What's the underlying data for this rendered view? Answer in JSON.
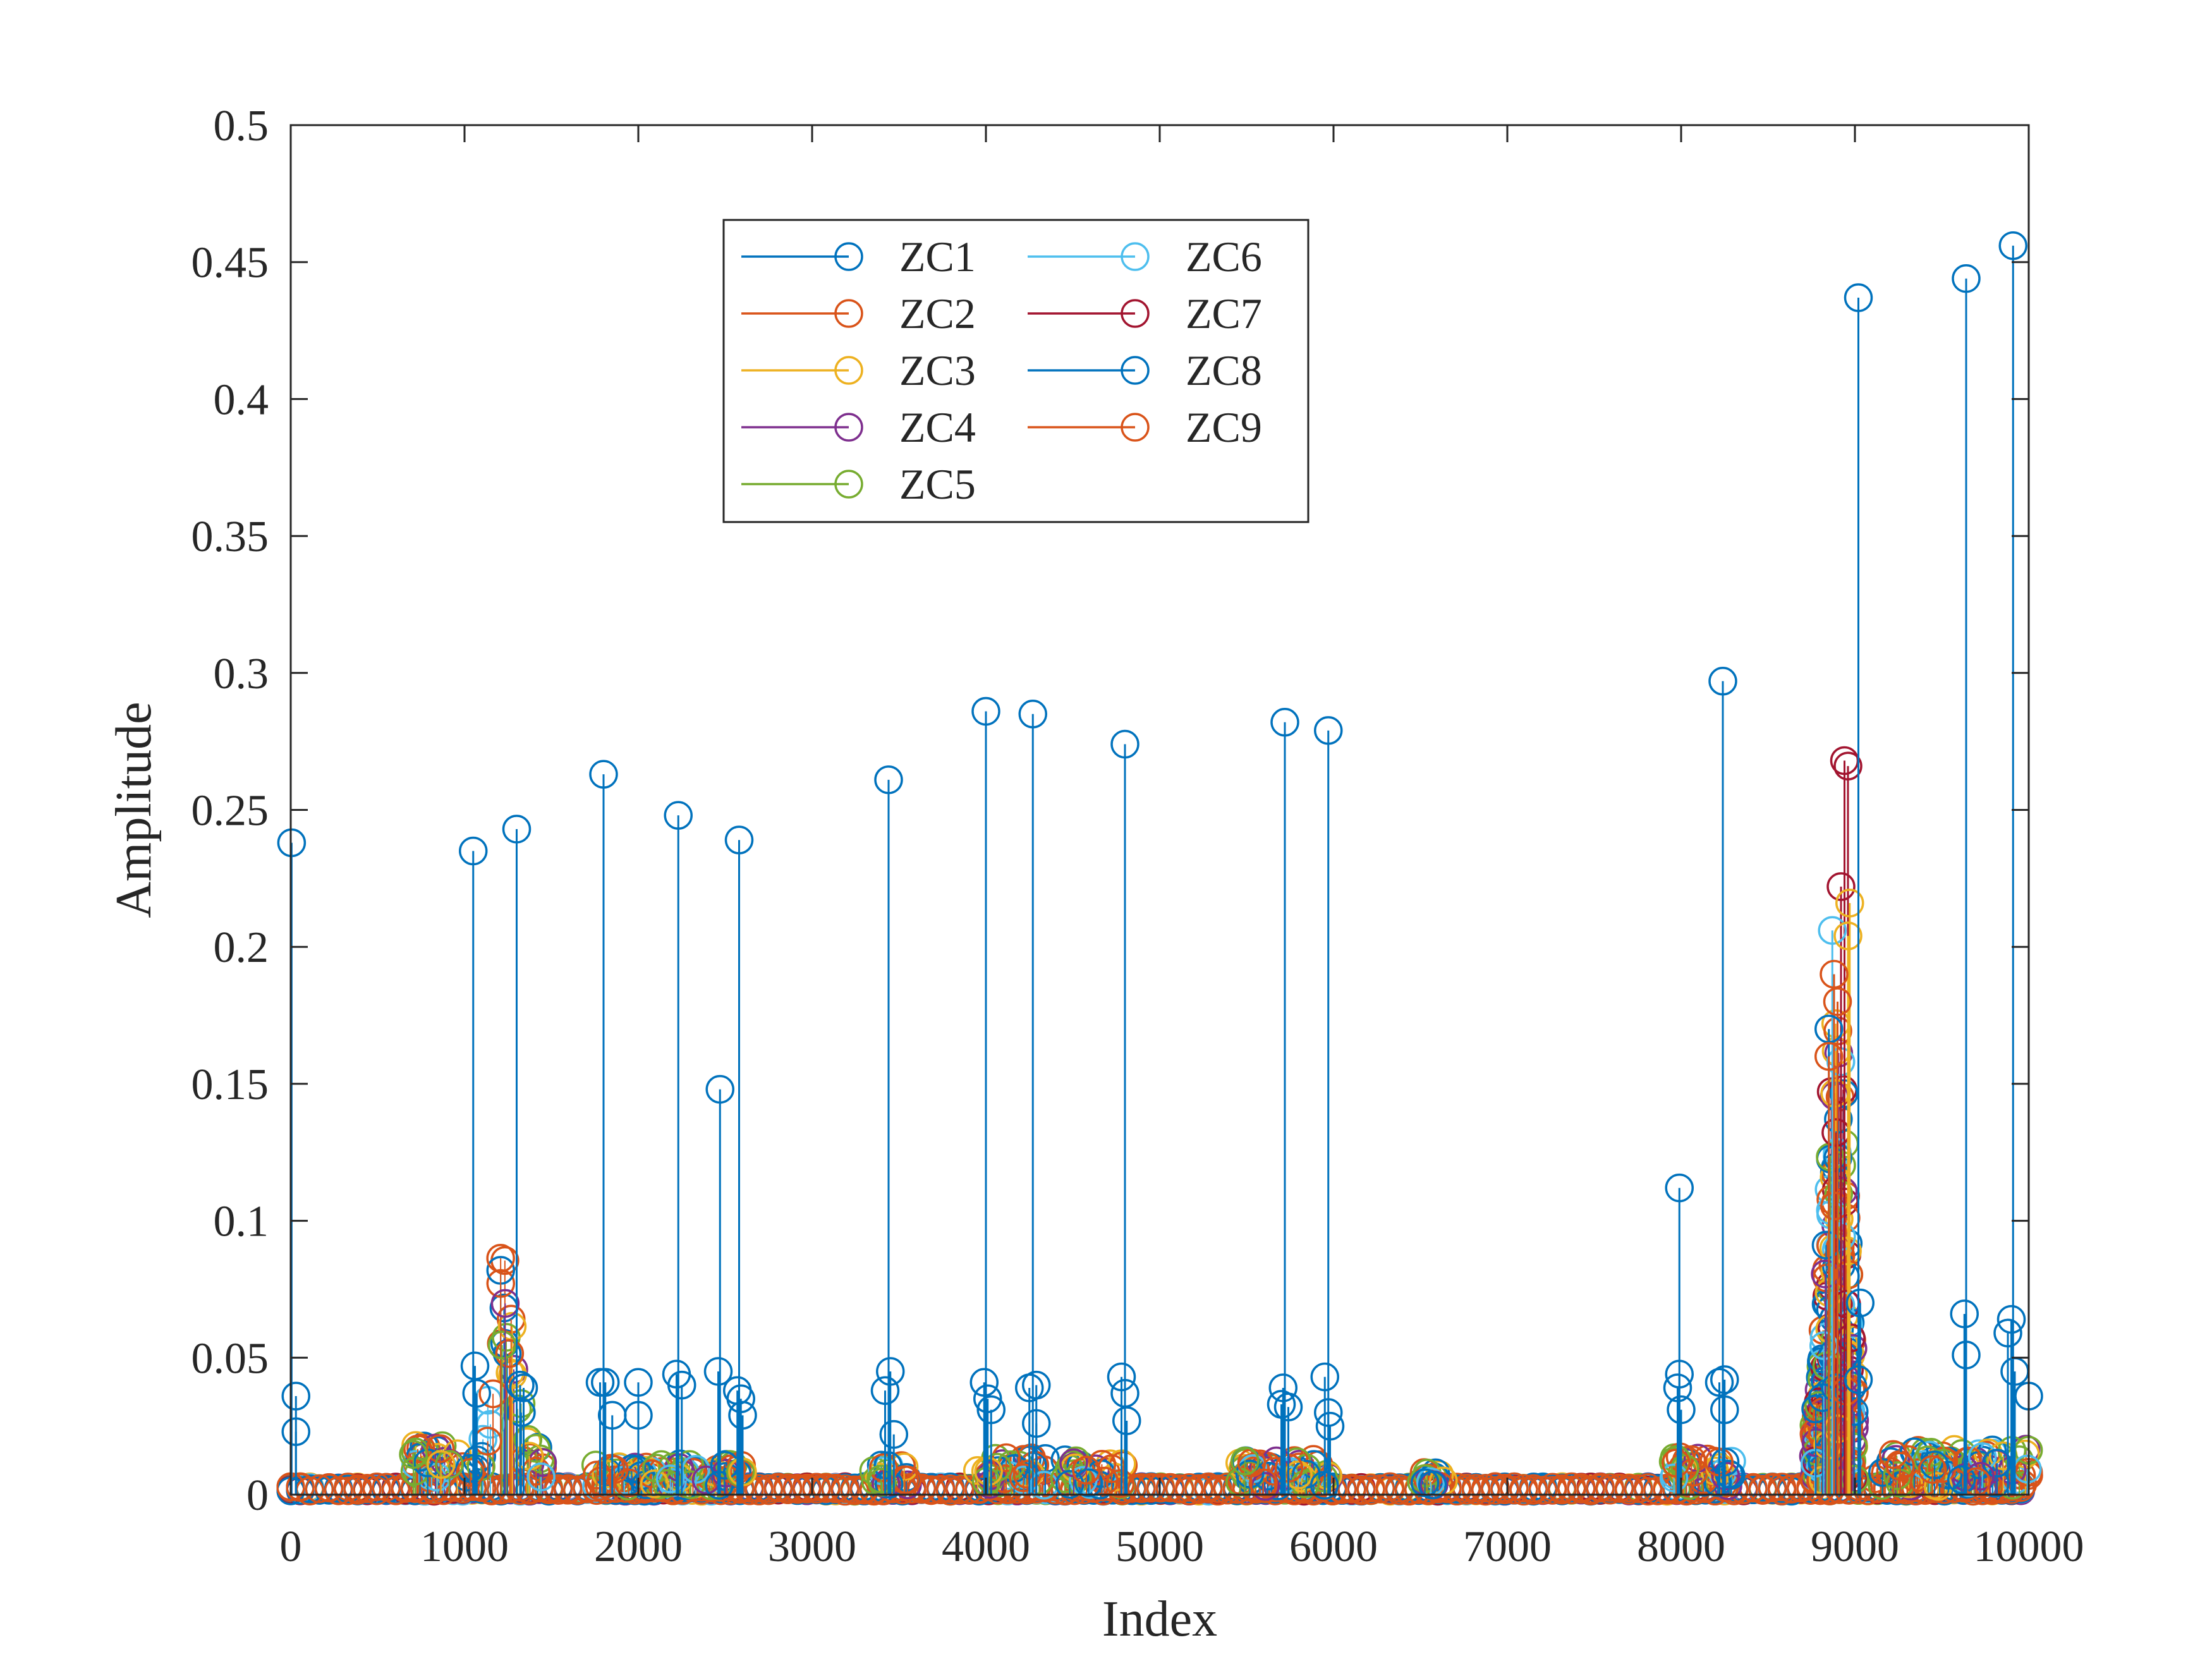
{
  "chart_data": {
    "type": "stem",
    "title": "",
    "xlabel": "Index",
    "ylabel": "Amplitude",
    "xlim": [
      0,
      10000
    ],
    "ylim": [
      0,
      0.5
    ],
    "xticks": [
      0,
      1000,
      2000,
      3000,
      4000,
      5000,
      6000,
      7000,
      8000,
      9000,
      10000
    ],
    "xtick_labels": [
      "0",
      "1000",
      "2000",
      "3000",
      "4000",
      "5000",
      "6000",
      "7000",
      "8000",
      "9000",
      "10000"
    ],
    "yticks": [
      0,
      0.05,
      0.1,
      0.15,
      0.2,
      0.25,
      0.3,
      0.35,
      0.4,
      0.45,
      0.5
    ],
    "ytick_labels": [
      "0",
      "0.05",
      "0.1",
      "0.15",
      "0.2",
      "0.25",
      "0.3",
      "0.35",
      "0.4",
      "0.45",
      "0.5"
    ],
    "grid": false,
    "legend_position": "top-center",
    "legend_columns": 2,
    "marker": "open-circle",
    "series": [
      {
        "name": "ZC1",
        "color": "#0072BD"
      },
      {
        "name": "ZC2",
        "color": "#D95319"
      },
      {
        "name": "ZC3",
        "color": "#EDB120"
      },
      {
        "name": "ZC4",
        "color": "#7E2F8E"
      },
      {
        "name": "ZC5",
        "color": "#77AC30"
      },
      {
        "name": "ZC6",
        "color": "#4DBEEE"
      },
      {
        "name": "ZC7",
        "color": "#A2142F"
      },
      {
        "name": "ZC8",
        "color": "#0072BD"
      },
      {
        "name": "ZC9",
        "color": "#D95319"
      }
    ],
    "peaks": {
      "series": "ZC1",
      "x": [
        5,
        1050,
        1300,
        1800,
        2230,
        2470,
        2580,
        3440,
        4000,
        4270,
        4800,
        5720,
        5970,
        7990,
        8240,
        9020,
        9640,
        9910
      ],
      "y": [
        0.238,
        0.235,
        0.243,
        0.263,
        0.248,
        0.148,
        0.239,
        0.261,
        0.286,
        0.285,
        0.274,
        0.282,
        0.279,
        0.112,
        0.297,
        0.437,
        0.444,
        0.456
      ]
    },
    "small_points": {
      "series": "ZC1",
      "x": [
        30,
        30,
        1060,
        1070,
        1320,
        1340,
        1780,
        1810,
        1850,
        2000,
        2000,
        2220,
        2250,
        2460,
        2570,
        2590,
        2600,
        3420,
        3450,
        3470,
        3990,
        4010,
        4030,
        4250,
        4290,
        4290,
        4780,
        4800,
        4810,
        5700,
        5710,
        5740,
        5950,
        5970,
        5980,
        7980,
        7990,
        8000,
        8220,
        8250,
        8250,
        9030,
        9020,
        9630,
        9640,
        9880,
        9900,
        9920,
        10000
      ],
      "y": [
        0.036,
        0.023,
        0.047,
        0.037,
        0.04,
        0.039,
        0.041,
        0.041,
        0.029,
        0.041,
        0.029,
        0.044,
        0.04,
        0.045,
        0.038,
        0.035,
        0.029,
        0.038,
        0.045,
        0.022,
        0.041,
        0.035,
        0.031,
        0.039,
        0.04,
        0.026,
        0.043,
        0.037,
        0.027,
        0.033,
        0.039,
        0.032,
        0.043,
        0.03,
        0.025,
        0.039,
        0.044,
        0.031,
        0.041,
        0.042,
        0.031,
        0.07,
        0.042,
        0.066,
        0.051,
        0.059,
        0.064,
        0.045,
        0.036
      ]
    },
    "spike_cluster": {
      "x_range": [
        8700,
        9000
      ],
      "series_peaks": [
        {
          "series": "ZC7",
          "x": 8940,
          "y": 0.268
        },
        {
          "series": "ZC7",
          "x": 8960,
          "y": 0.266
        },
        {
          "series": "ZC7",
          "x": 8920,
          "y": 0.222
        },
        {
          "series": "ZC3",
          "x": 8970,
          "y": 0.216
        },
        {
          "series": "ZC6",
          "x": 8870,
          "y": 0.206
        },
        {
          "series": "ZC3",
          "x": 8960,
          "y": 0.204
        },
        {
          "series": "ZC2",
          "x": 8880,
          "y": 0.19
        },
        {
          "series": "ZC2",
          "x": 8900,
          "y": 0.18
        },
        {
          "series": "ZC8",
          "x": 8850,
          "y": 0.17
        },
        {
          "series": "ZC2",
          "x": 8850,
          "y": 0.16
        }
      ]
    },
    "active_bands": [
      {
        "x_range": [
          700,
          1450
        ],
        "peak_y": 0.085
      },
      {
        "x_range": [
          1750,
          2600
        ],
        "peak_y": 0.015
      },
      {
        "x_range": [
          3350,
          3550
        ],
        "peak_y": 0.015
      },
      {
        "x_range": [
          3950,
          4350
        ],
        "peak_y": 0.02
      },
      {
        "x_range": [
          4450,
          4800
        ],
        "peak_y": 0.018
      },
      {
        "x_range": [
          5450,
          6000
        ],
        "peak_y": 0.018
      },
      {
        "x_range": [
          6500,
          6650
        ],
        "peak_y": 0.01
      },
      {
        "x_range": [
          7950,
          8300
        ],
        "peak_y": 0.02
      },
      {
        "x_range": [
          9100,
          10000
        ],
        "peak_y": 0.025
      }
    ]
  }
}
